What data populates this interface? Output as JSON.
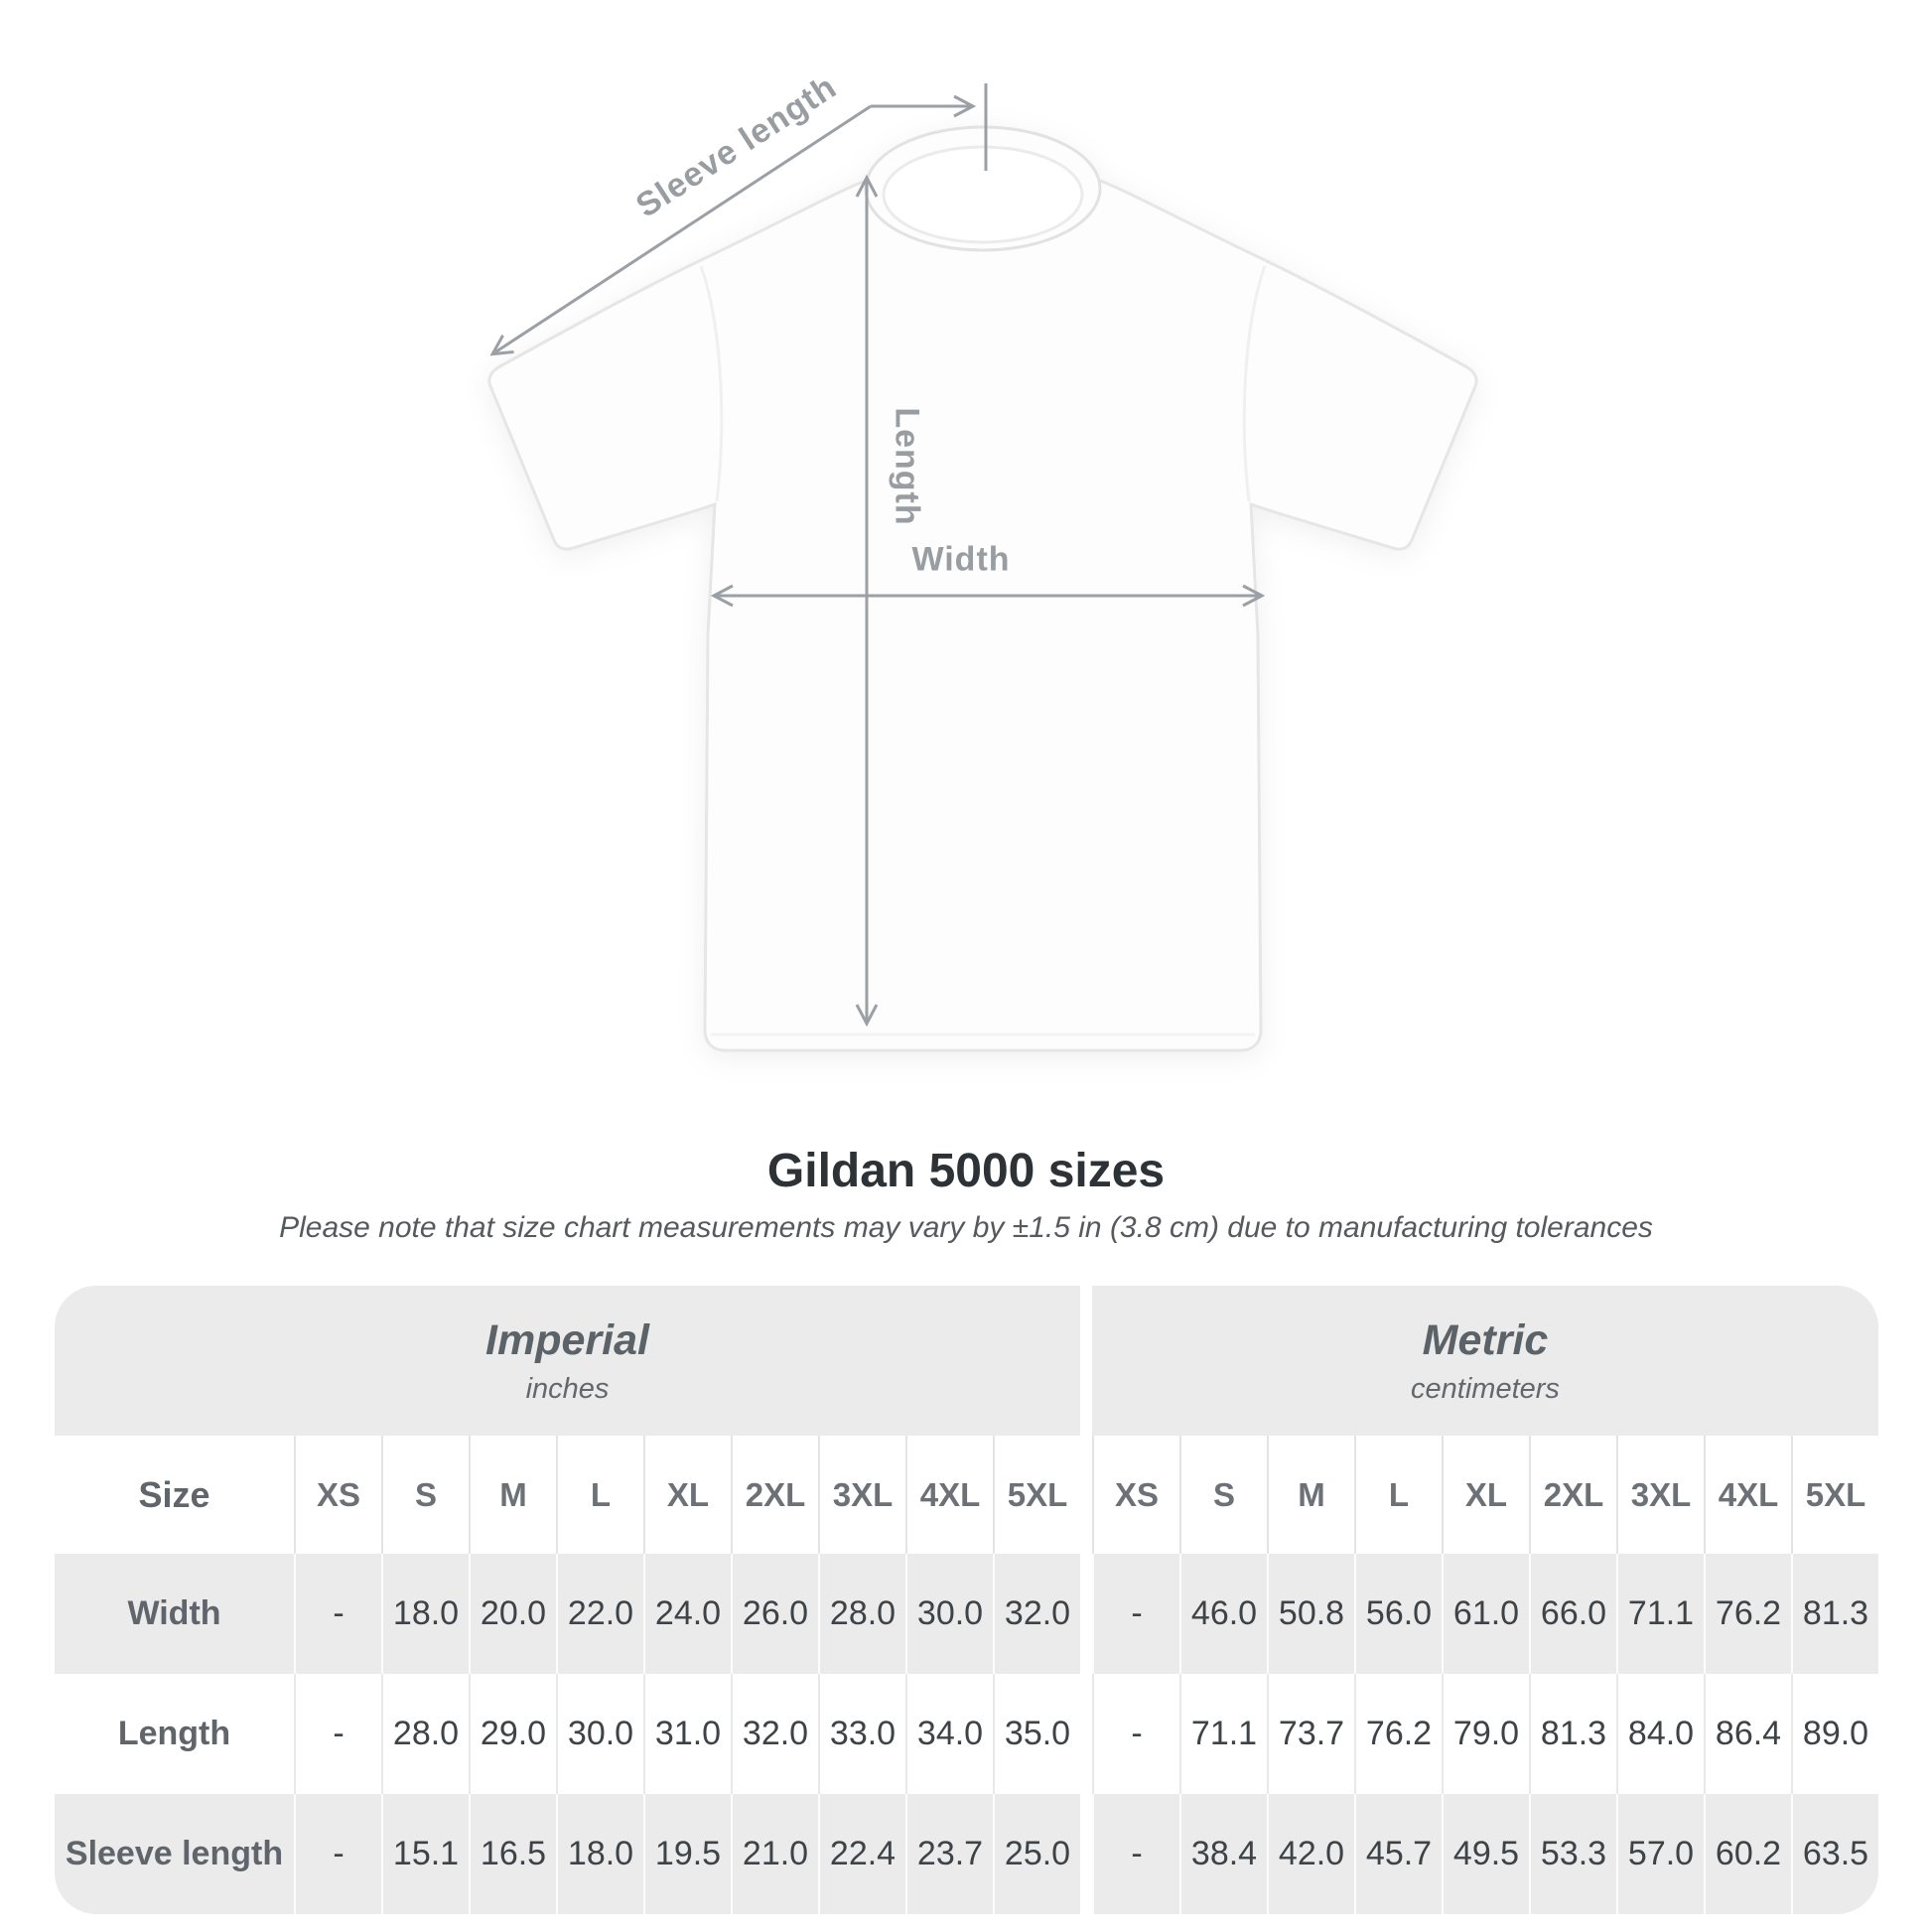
{
  "diagram": {
    "annotations": {
      "sleeve_length_label": "Sleeve length",
      "length_label": "Length",
      "width_label": "Width"
    },
    "line_color": "#9aa0a5"
  },
  "heading": {
    "title": "Gildan 5000 sizes",
    "subtitle": "Please note that size chart measurements may vary by ±1.5 in (3.8 cm) due to manufacturing tolerances"
  },
  "size_table": {
    "groups": [
      {
        "name": "Imperial",
        "unit": "inches"
      },
      {
        "name": "Metric",
        "unit": "centimeters"
      }
    ],
    "size_column_header": "Size",
    "size_headers": [
      "XS",
      "S",
      "M",
      "L",
      "XL",
      "2XL",
      "3XL",
      "4XL",
      "5XL"
    ],
    "rows": [
      {
        "label": "Width",
        "imperial": [
          "-",
          "18.0",
          "20.0",
          "22.0",
          "24.0",
          "26.0",
          "28.0",
          "30.0",
          "32.0"
        ],
        "metric": [
          "-",
          "46.0",
          "50.8",
          "56.0",
          "61.0",
          "66.0",
          "71.1",
          "76.2",
          "81.3"
        ]
      },
      {
        "label": "Length",
        "imperial": [
          "-",
          "28.0",
          "29.0",
          "30.0",
          "31.0",
          "32.0",
          "33.0",
          "34.0",
          "35.0"
        ],
        "metric": [
          "-",
          "71.1",
          "73.7",
          "76.2",
          "79.0",
          "81.3",
          "84.0",
          "86.4",
          "89.0"
        ]
      },
      {
        "label": "Sleeve length",
        "imperial": [
          "-",
          "15.1",
          "16.5",
          "18.0",
          "19.5",
          "21.0",
          "22.4",
          "23.7",
          "25.0"
        ],
        "metric": [
          "-",
          "38.4",
          "42.0",
          "45.7",
          "49.5",
          "53.3",
          "57.0",
          "60.2",
          "63.5"
        ]
      }
    ]
  },
  "colors": {
    "band_bg": "#ebebeb",
    "stripe_bg": "#ebebeb",
    "title_text": "#2d3236",
    "subtitle_text": "#56595d",
    "data_text": "#3e4347",
    "muted_text": "#5f656b",
    "annotation": "#9aa0a5"
  }
}
